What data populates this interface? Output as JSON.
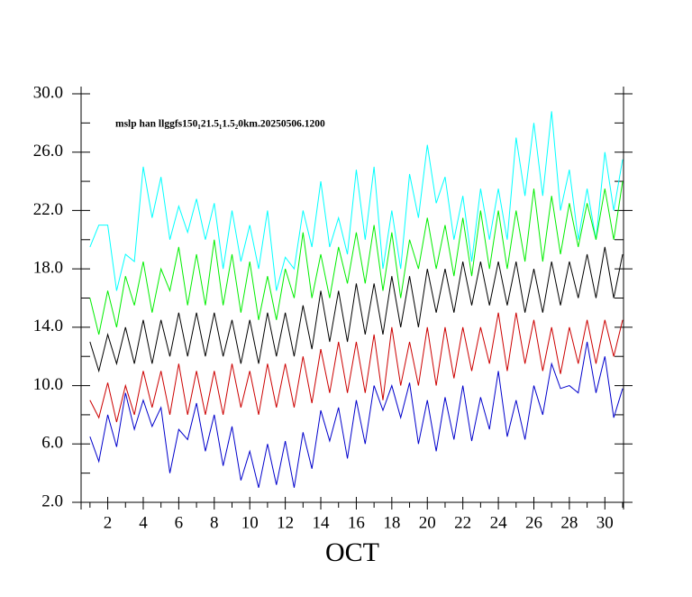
{
  "chart_data": {
    "type": "line",
    "title": "mslp han llggfs150₁21.5₁1.5₂0km.20250506.1200",
    "xlabel": "OCT",
    "x": [
      1,
      1.5,
      2,
      2.5,
      3,
      3.5,
      4,
      4.5,
      5,
      5.5,
      6,
      6.5,
      7,
      7.5,
      8,
      8.5,
      9,
      9.5,
      10,
      10.5,
      11,
      11.5,
      12,
      12.5,
      13,
      13.5,
      14,
      14.5,
      15,
      15.5,
      16,
      16.5,
      17,
      17.5,
      18,
      18.5,
      19,
      19.5,
      20,
      20.5,
      21,
      21.5,
      22,
      22.5,
      23,
      23.5,
      24,
      24.5,
      25,
      25.5,
      26,
      26.5,
      27,
      27.5,
      28,
      28.5,
      29,
      29.5,
      30,
      30.5,
      31
    ],
    "series": [
      {
        "color": "#00ffff",
        "values": [
          19.5,
          21,
          21,
          16.5,
          19,
          18.5,
          25,
          21.5,
          24.3,
          20,
          22.3,
          20.5,
          22.8,
          20,
          22.5,
          18,
          22,
          18.5,
          21,
          18,
          22,
          16.5,
          18.8,
          18,
          22,
          19.5,
          24,
          19.5,
          21.5,
          19,
          24.8,
          20,
          25,
          18,
          22,
          18,
          24.5,
          21.5,
          26.5,
          22.5,
          24.3,
          20,
          23,
          18.5,
          23.5,
          20,
          23.5,
          20,
          27,
          23,
          28,
          23,
          28.8,
          22,
          24.8,
          20,
          23.5,
          20,
          26,
          22,
          25.5
        ]
      },
      {
        "color": "#00ee00",
        "values": [
          16,
          13.5,
          16.5,
          14,
          17.5,
          15.5,
          18.5,
          15,
          18,
          16.5,
          19.5,
          15.5,
          19,
          15.5,
          20,
          15.5,
          19,
          15,
          18.5,
          14.5,
          17.5,
          14.5,
          18,
          16,
          20.5,
          16,
          19,
          16,
          19.5,
          17,
          20.5,
          17,
          21,
          16.5,
          20.5,
          16,
          20,
          18,
          21.5,
          18,
          21,
          17.5,
          21.5,
          17.5,
          22,
          18,
          22,
          18,
          22,
          18.5,
          23.5,
          18.5,
          23,
          19,
          22.5,
          19.5,
          22.5,
          20,
          23.5,
          20,
          24
        ]
      },
      {
        "color": "#000000",
        "values": [
          13,
          11,
          13.5,
          11.5,
          14,
          11.5,
          14.5,
          11.5,
          14.5,
          12,
          15,
          12,
          15,
          12,
          15,
          12,
          14.5,
          11.5,
          14.5,
          11.5,
          15,
          12,
          15,
          12,
          15.5,
          12.5,
          16.5,
          13,
          16.5,
          13,
          17,
          13.5,
          17,
          13.5,
          17.5,
          14,
          17.5,
          14,
          18,
          15,
          18,
          15,
          18.5,
          15.5,
          18.5,
          15.5,
          18.5,
          15.5,
          18.5,
          15,
          18,
          15,
          18.5,
          15.5,
          18.5,
          16,
          19,
          16,
          19.5,
          16,
          19
        ]
      },
      {
        "color": "#cc0000",
        "values": [
          9,
          7.8,
          10.2,
          7.5,
          10,
          8,
          11,
          8.5,
          11,
          8,
          11.5,
          8,
          11,
          8,
          11,
          8,
          11.5,
          8.5,
          11,
          8,
          11.5,
          8.5,
          11.5,
          8.5,
          12,
          8.8,
          12.5,
          9.5,
          13,
          9.5,
          13,
          9.5,
          13.5,
          9,
          14,
          10,
          13,
          10,
          14,
          10,
          14,
          10.5,
          14,
          11,
          14,
          11.5,
          15,
          11,
          15,
          11.5,
          14.5,
          11,
          14,
          10.8,
          14,
          11.5,
          14.5,
          11.5,
          14.5,
          12,
          14.5
        ]
      },
      {
        "color": "#0000cc",
        "values": [
          6.5,
          4.8,
          8,
          5.8,
          9.5,
          7,
          9,
          7.2,
          8.5,
          4,
          7,
          6.3,
          8.8,
          5.5,
          8,
          4.5,
          7.2,
          3.5,
          5.5,
          3,
          6,
          3.2,
          6.2,
          3,
          6.8,
          4.3,
          8.3,
          6.2,
          8.5,
          5,
          9,
          6,
          10,
          8.3,
          10,
          7.8,
          10.2,
          6,
          9,
          5.5,
          9.2,
          6.3,
          10,
          6.2,
          9.2,
          7,
          11,
          6.5,
          9,
          6.3,
          10,
          8,
          11.5,
          9.8,
          10,
          9.5,
          13,
          9.5,
          12,
          7.8,
          9.8
        ]
      }
    ],
    "xlim": [
      0.5,
      31.05
    ],
    "xticks": [
      2,
      4,
      6,
      8,
      10,
      12,
      14,
      16,
      18,
      20,
      22,
      24,
      26,
      28,
      30
    ],
    "xticks_minor": [
      1,
      3,
      5,
      7,
      9,
      11,
      13,
      15,
      17,
      19,
      21,
      23,
      25,
      27,
      29,
      31
    ],
    "ylim": [
      2,
      30
    ],
    "yticks": [
      {
        "value": 2,
        "label": "2.0"
      },
      {
        "value": 6,
        "label": "6.0"
      },
      {
        "value": 10,
        "label": "10.0"
      },
      {
        "value": 14,
        "label": "14.0"
      },
      {
        "value": 18,
        "label": "18.0"
      },
      {
        "value": 22,
        "label": "22.0"
      },
      {
        "value": 26,
        "label": "26.0"
      },
      {
        "value": 30,
        "label": "30.0"
      }
    ],
    "yticks_minor": [
      4,
      8,
      12,
      16,
      20,
      24,
      28
    ],
    "grid": false
  }
}
